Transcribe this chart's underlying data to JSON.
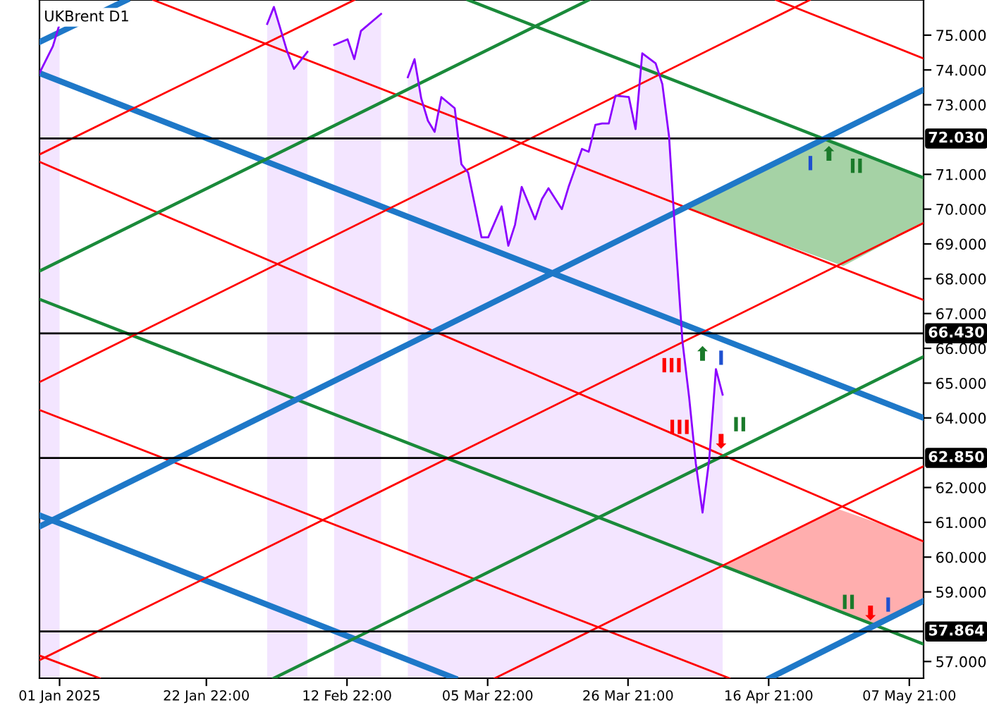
{
  "chart_data": {
    "type": "area",
    "title": "UKBrent D1",
    "xlim": [
      "2024-12-29",
      "2025-05-10"
    ],
    "ylim": [
      56.52,
      76.01
    ],
    "xticks": [
      {
        "value": "2025-01-01",
        "label": "01 Jan 2025"
      },
      {
        "value": "2025-01-22T22:00",
        "label": "22 Jan 22:00"
      },
      {
        "value": "2025-02-12T22:00",
        "label": "12 Feb 22:00"
      },
      {
        "value": "2025-03-05T22:00",
        "label": "05 Mar 22:00"
      },
      {
        "value": "2025-03-26T21:00",
        "label": "26 Mar 21:00"
      },
      {
        "value": "2025-04-16T21:00",
        "label": "16 Apr 21:00"
      },
      {
        "value": "2025-05-07T21:00",
        "label": "07 May 21:00"
      }
    ],
    "yticks": [
      {
        "value": 57,
        "label": "57.000"
      },
      {
        "value": 59,
        "label": "59.000"
      },
      {
        "value": 60,
        "label": "60.000"
      },
      {
        "value": 61,
        "label": "61.000"
      },
      {
        "value": 62,
        "label": "62.000"
      },
      {
        "value": 64,
        "label": "64.000"
      },
      {
        "value": 65,
        "label": "65.000"
      },
      {
        "value": 66,
        "label": "66.000"
      },
      {
        "value": 67,
        "label": "67.000"
      },
      {
        "value": 68,
        "label": "68.000"
      },
      {
        "value": 69,
        "label": "69.000"
      },
      {
        "value": 70,
        "label": "70.000"
      },
      {
        "value": 71,
        "label": "71.000"
      },
      {
        "value": 73,
        "label": "73.000"
      },
      {
        "value": 74,
        "label": "74.000"
      },
      {
        "value": 75,
        "label": "75.000"
      }
    ],
    "grid": false,
    "legend": false,
    "marker": "none",
    "line_style": "solid",
    "series": [
      {
        "color": "#8b00ff",
        "x": [
          "2024-12-29",
          "2024-12-31",
          "2025-01-01",
          "2025-01-14",
          "2025-02-01",
          "2025-02-02",
          "2025-02-04",
          "2025-02-05",
          "2025-02-07",
          "2025-02-09",
          "2025-02-11",
          "2025-02-13",
          "2025-02-14",
          "2025-02-15",
          "2025-02-18",
          "2025-02-20",
          "2025-02-22",
          "2025-02-23",
          "2025-02-24",
          "2025-02-25",
          "2025-02-26",
          "2025-02-27",
          "2025-03-01",
          "2025-03-02",
          "2025-03-03",
          "2025-03-05",
          "2025-03-06",
          "2025-03-08",
          "2025-03-09",
          "2025-03-10",
          "2025-03-11",
          "2025-03-13",
          "2025-03-14",
          "2025-03-15",
          "2025-03-17",
          "2025-03-18",
          "2025-03-20",
          "2025-03-21",
          "2025-03-22",
          "2025-03-23",
          "2025-03-24",
          "2025-03-25",
          "2025-03-27",
          "2025-03-28",
          "2025-03-29",
          "2025-03-31",
          "2025-04-01",
          "2025-04-02",
          "2025-04-03",
          "2025-04-04",
          "2025-04-05",
          "2025-04-06",
          "2025-04-07",
          "2025-04-08",
          "2025-04-09",
          "2025-04-10"
        ],
        "values": [
          73.91,
          74.68,
          75.32,
          null,
          75.32,
          75.81,
          74.52,
          74.03,
          74.52,
          null,
          74.72,
          74.88,
          74.31,
          75.12,
          75.61,
          null,
          73.79,
          74.31,
          73.18,
          72.54,
          72.22,
          73.22,
          72.9,
          71.29,
          71.05,
          69.19,
          69.19,
          70.08,
          68.95,
          69.55,
          70.64,
          69.71,
          70.28,
          70.6,
          70.0,
          70.64,
          71.73,
          71.65,
          72.42,
          72.46,
          72.46,
          73.26,
          73.22,
          72.3,
          74.48,
          74.19,
          73.59,
          72.09,
          69.03,
          66.2,
          64.59,
          62.69,
          61.28,
          62.81,
          65.4,
          64.67
        ]
      },
      {
        "type": "area",
        "color": "#a0d0a0",
        "x": [
          "2025-04-04",
          "2025-04-26",
          "2025-04-28",
          "2025-05-10"
        ],
        "values": [
          null,
          null,
          null,
          null
        ],
        "upper": [
          70.05,
          72.01,
          71.87,
          70.9
        ],
        "lower": [
          70.05,
          68.51,
          68.36,
          69.6
        ]
      },
      {
        "type": "area",
        "color": "#ffaaaa",
        "x": [
          "2025-04-10",
          "2025-04-27",
          "2025-05-03",
          "2025-05-10"
        ],
        "values": [
          null,
          null,
          null,
          null
        ],
        "upper": [
          59.76,
          61.4,
          60.99,
          60.45
        ],
        "lower": [
          59.76,
          58.46,
          58.05,
          58.74
        ]
      },
      {
        "type": "line",
        "color": "#ff0000",
        "x": [
          "2025-04-18",
          "2025-05-10"
        ],
        "values": [
          76.01,
          74.33
        ]
      },
      {
        "type": "line",
        "color": "#1a8a3a",
        "x": [
          "2025-03-03",
          "2025-05-10"
        ],
        "values": [
          76.01,
          70.9
        ]
      },
      {
        "type": "line",
        "color": "#ff0000",
        "x": [
          "2025-01-15",
          "2025-05-10"
        ],
        "values": [
          76.01,
          67.39
        ]
      },
      {
        "type": "line",
        "color": "#1e78c8",
        "x": [
          "2024-12-29",
          "2025-05-10"
        ],
        "values": [
          73.91,
          64.0
        ]
      },
      {
        "type": "line",
        "color": "#ff0000",
        "x": [
          "2024-12-29",
          "2025-05-10"
        ],
        "values": [
          71.36,
          60.45
        ]
      },
      {
        "type": "line",
        "color": "#1a8a3a",
        "x": [
          "2024-12-29",
          "2025-05-10"
        ],
        "values": [
          67.41,
          57.5
        ]
      },
      {
        "type": "line",
        "color": "#ff0000",
        "x": [
          "2024-12-29",
          "2025-04-11"
        ],
        "values": [
          64.23,
          56.52
        ]
      },
      {
        "type": "line",
        "color": "#1e78c8",
        "x": [
          "2024-12-29",
          "2025-03-01"
        ],
        "values": [
          61.2,
          56.52
        ]
      },
      {
        "type": "line",
        "color": "#ff0000",
        "x": [
          "2024-12-29",
          "2025-01-07"
        ],
        "values": [
          57.17,
          56.52
        ]
      },
      {
        "type": "line",
        "color": "#1e78c8",
        "x": [
          "2024-12-29",
          "2025-01-11"
        ],
        "values": [
          74.8,
          76.01
        ]
      },
      {
        "type": "line",
        "color": "#ff0000",
        "x": [
          "2024-12-29",
          "2025-02-14"
        ],
        "values": [
          71.57,
          76.01
        ]
      },
      {
        "type": "line",
        "color": "#1a8a3a",
        "x": [
          "2024-12-29",
          "2025-03-21"
        ],
        "values": [
          68.22,
          76.01
        ]
      },
      {
        "type": "line",
        "color": "#ff0000",
        "x": [
          "2024-12-29",
          "2025-04-23"
        ],
        "values": [
          65.03,
          76.01
        ]
      },
      {
        "type": "line",
        "color": "#1e78c8",
        "x": [
          "2024-12-29",
          "2025-05-10"
        ],
        "values": [
          60.88,
          73.43
        ]
      },
      {
        "type": "line",
        "color": "#ff0000",
        "x": [
          "2024-12-29",
          "2025-05-10"
        ],
        "values": [
          57.04,
          69.6
        ]
      },
      {
        "type": "line",
        "color": "#1a8a3a",
        "x": [
          "2025-02-02",
          "2025-05-10"
        ],
        "values": [
          56.52,
          65.76
        ]
      },
      {
        "type": "line",
        "color": "#ff0000",
        "x": [
          "2025-03-07",
          "2025-05-10"
        ],
        "values": [
          56.52,
          62.61
        ]
      },
      {
        "type": "line",
        "color": "#1e78c8",
        "x": [
          "2025-04-17",
          "2025-05-10"
        ],
        "values": [
          56.52,
          58.74
        ]
      }
    ],
    "ref_lines": [
      {
        "axis": "y",
        "value": 72.03,
        "label": "72.030",
        "color": "#000000"
      },
      {
        "axis": "y",
        "value": 66.43,
        "label": "66.430",
        "color": "#000000"
      },
      {
        "axis": "y",
        "value": 62.85,
        "label": "62.850",
        "color": "#000000"
      },
      {
        "axis": "y",
        "value": 57.864,
        "label": "57.864",
        "color": "#000000"
      }
    ],
    "annotations": [
      "I",
      "⬆",
      "II",
      "III",
      "⬆",
      "I",
      "III",
      "⬇",
      "II",
      "II",
      "⬇",
      "I"
    ]
  }
}
